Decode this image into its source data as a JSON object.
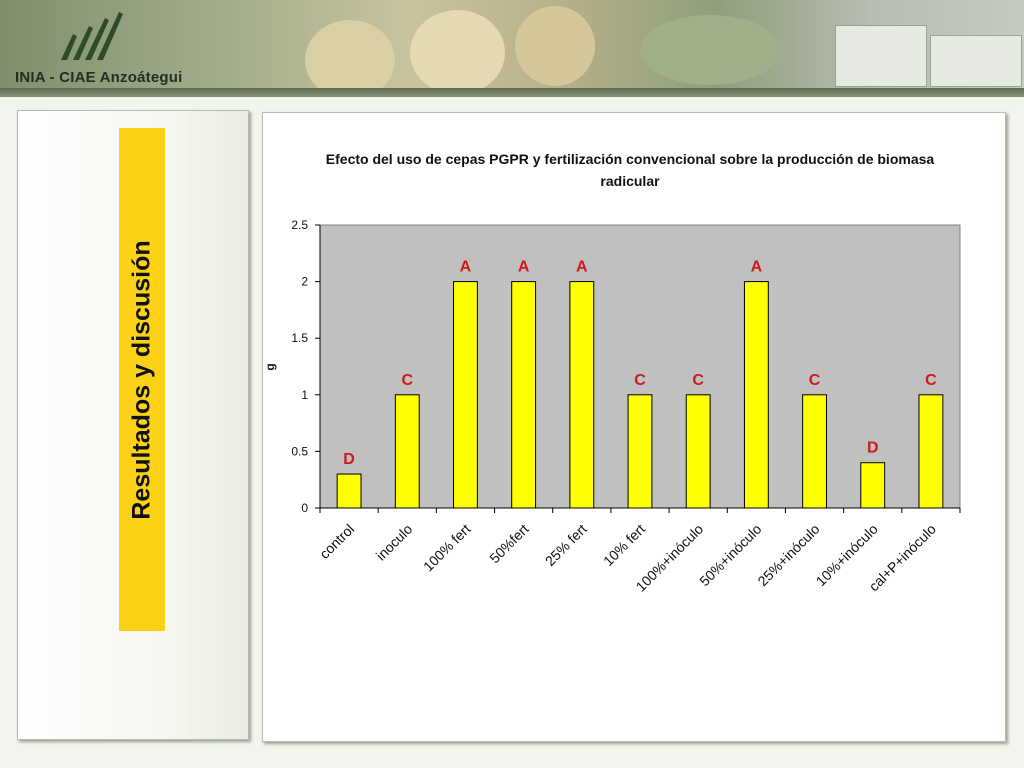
{
  "header": {
    "brand": "INIA - CIAE Anzoátegui",
    "logo_icon": "inia-leaf-logo-icon"
  },
  "sidebar": {
    "title": "Resultados y discusión",
    "accent_color": "#fcd116"
  },
  "chart_data": {
    "type": "bar",
    "title": "Efecto del uso de cepas PGPR y fertilización convencional sobre la producción de biomasa radicular",
    "xlabel": "",
    "ylabel": "g",
    "ylim": [
      0,
      2.5
    ],
    "yticks": [
      "0",
      "0.5",
      "1",
      "1.5",
      "2",
      "2.5"
    ],
    "grid": false,
    "bar_color": "#ffff00",
    "label_color": "#cc1a1a",
    "categories": [
      "control",
      "inoculo",
      "100% fert",
      "50%fert",
      "25% fert",
      "10% fert",
      "100%+inóculo",
      "50%+inóculo",
      "25%+inóculo",
      "10%+inóculo",
      "cal+P+inóculo"
    ],
    "values": [
      0.3,
      1,
      2,
      2,
      2,
      1,
      1,
      2,
      1,
      0.4,
      1
    ],
    "annotations": [
      "D",
      "C",
      "A",
      "A",
      "A",
      "C",
      "C",
      "A",
      "C",
      "D",
      "C"
    ]
  }
}
